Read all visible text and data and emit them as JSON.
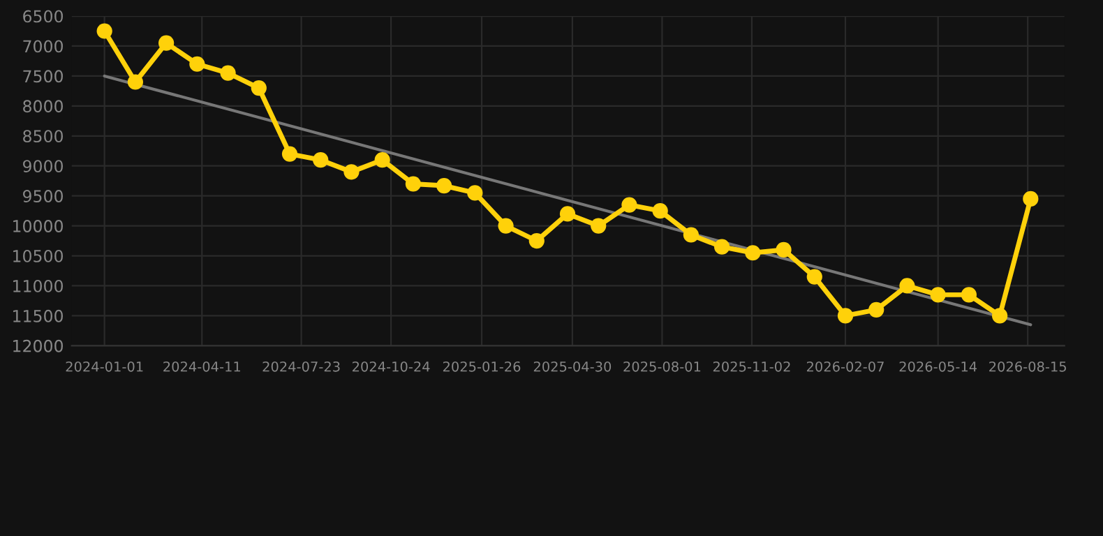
{
  "chart_data": {
    "type": "line",
    "x": [
      "2024-01-01",
      "2024-02-02",
      "2024-03-05",
      "2024-04-06",
      "2024-05-08",
      "2024-06-09",
      "2024-07-11",
      "2024-08-12",
      "2024-09-13",
      "2024-10-15",
      "2024-11-16",
      "2024-12-18",
      "2025-01-19",
      "2025-02-20",
      "2025-03-24",
      "2025-04-25",
      "2025-05-27",
      "2025-06-28",
      "2025-07-30",
      "2025-08-31",
      "2025-10-02",
      "2025-11-03",
      "2025-12-05",
      "2026-01-06",
      "2026-02-07",
      "2026-03-11",
      "2026-04-12",
      "2026-05-14",
      "2026-06-15",
      "2026-07-17",
      "2026-08-18"
    ],
    "series": [
      {
        "color": "#ffd10a",
        "marker": "circle",
        "values": [
          6750,
          7600,
          6950,
          7300,
          7450,
          7700,
          8800,
          8900,
          9100,
          8900,
          9300,
          9330,
          9450,
          10000,
          10250,
          9800,
          10000,
          9650,
          9750,
          10150,
          10350,
          10450,
          10400,
          10850,
          11500,
          11400,
          11000,
          11150,
          11150,
          11500,
          9550
        ]
      },
      {
        "color": "#777777",
        "marker": "none",
        "x": [
          "2024-01-01",
          "2026-08-18"
        ],
        "values": [
          7500,
          11650
        ]
      }
    ],
    "xlim": [
      "2023-11-28",
      "2026-09-22"
    ],
    "xticks": [
      {
        "value": "2024-01-01",
        "label": "2024-01-01"
      },
      {
        "value": "2024-04-11",
        "label": "2024-04-11"
      },
      {
        "value": "2024-07-23",
        "label": "2024-07-23"
      },
      {
        "value": "2024-10-24",
        "label": "2024-10-24"
      },
      {
        "value": "2025-01-26",
        "label": "2025-01-26"
      },
      {
        "value": "2025-04-30",
        "label": "2025-04-30"
      },
      {
        "value": "2025-08-01",
        "label": "2025-08-01"
      },
      {
        "value": "2025-11-02",
        "label": "2025-11-02"
      },
      {
        "value": "2026-02-07",
        "label": "2026-02-07"
      },
      {
        "value": "2026-05-14",
        "label": "2026-05-14"
      },
      {
        "value": "2026-08-15",
        "label": "2026-08-15"
      }
    ],
    "ylim": [
      12000,
      6500
    ],
    "yticks": [
      6500,
      7000,
      7500,
      8000,
      8500,
      9000,
      9500,
      10000,
      10500,
      11000,
      11500,
      12000
    ],
    "grid": true,
    "line_style": "solid"
  }
}
